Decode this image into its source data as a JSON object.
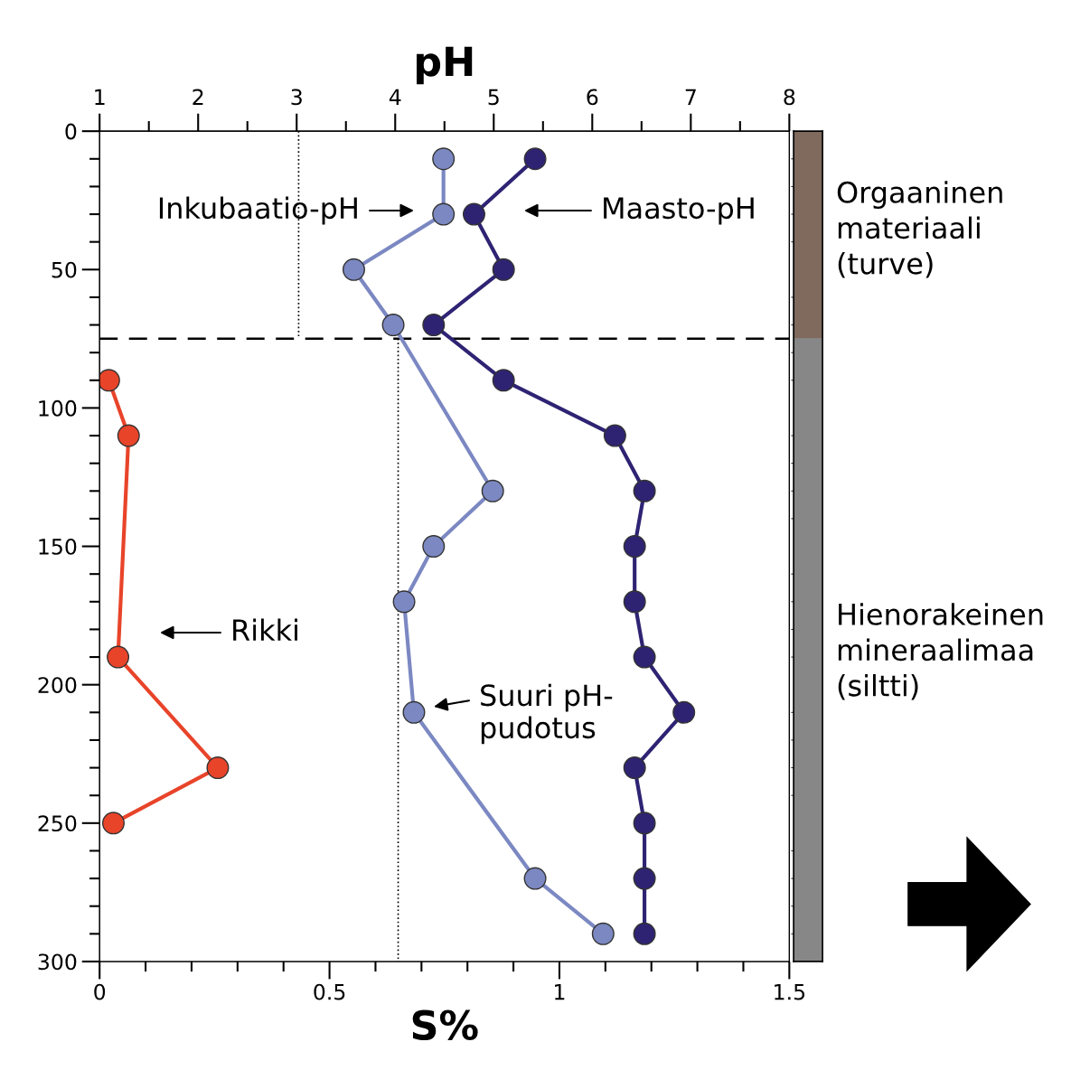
{
  "chart_data": {
    "type": "line",
    "xlabel": "S%",
    "x2label": "pH",
    "xlim": [
      0,
      1.5
    ],
    "xticks": [
      0,
      0.5,
      1,
      1.5
    ],
    "x2lim": [
      1,
      8
    ],
    "x2ticks": [
      1,
      2,
      3,
      4,
      5,
      6,
      7,
      8
    ],
    "ylim": [
      300,
      0
    ],
    "yticks": [
      0,
      50,
      100,
      150,
      200,
      250,
      300
    ],
    "marker": "circle",
    "line_style": "solid",
    "grid": false,
    "legend": false,
    "series": [
      {
        "axis": "x2",
        "color": "#7b88c2",
        "x": [
          4.49,
          4.49,
          3.58,
          3.98,
          4.99,
          4.39,
          4.09,
          4.19,
          5.42,
          6.11
        ],
        "values": [
          10,
          30,
          50,
          70,
          130,
          150,
          170,
          210,
          270,
          290
        ]
      },
      {
        "axis": "x2",
        "color": "#2e2373",
        "x": [
          5.42,
          4.8,
          5.1,
          4.39,
          5.1,
          6.23,
          6.53,
          6.43,
          6.43,
          6.53,
          6.93,
          6.43,
          6.53,
          6.53,
          6.53
        ],
        "values": [
          10,
          30,
          50,
          70,
          90,
          110,
          130,
          150,
          170,
          190,
          210,
          230,
          250,
          270,
          290
        ]
      },
      {
        "color": "#e8442a",
        "x": [
          0.02,
          0.063,
          0.04,
          0.257,
          0.03
        ],
        "values": [
          90,
          110,
          190,
          230,
          250
        ]
      }
    ],
    "ref_lines": [
      {
        "axis": "y",
        "value": 75,
        "line_style": "dashed",
        "color": "#000000"
      },
      {
        "axis": "x2",
        "value": 3.02,
        "line_style": "dotted",
        "color": "#000000"
      },
      {
        "axis": "x2",
        "value": 4.03,
        "line_style": "dotted",
        "color": "#000000"
      }
    ],
    "annotations": [
      "Inkubaatio-pH",
      "Maasto-pH",
      "Rikki",
      "Suuri pH-\npudotus",
      "Orgaaninen\nmateriaali\n(turve)",
      "Hienorakeinen\nmineraalimaa\n(siltti)"
    ]
  }
}
